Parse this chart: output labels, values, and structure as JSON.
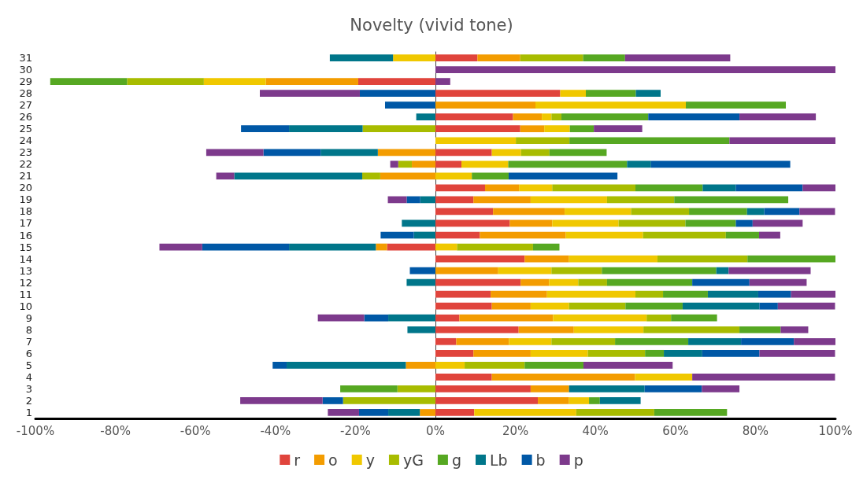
{
  "chart_data": {
    "type": "bar",
    "title": "Novelty (vivid tone)",
    "orientation": "horizontal",
    "stacked": true,
    "legend": "bottom",
    "categories": [
      "31",
      "30",
      "29",
      "28",
      "27",
      "26",
      "25",
      "24",
      "23",
      "22",
      "21",
      "20",
      "19",
      "18",
      "17",
      "16",
      "15",
      "14",
      "13",
      "12",
      "11",
      "10",
      "9",
      "8",
      "7",
      "6",
      "5",
      "4",
      "3",
      "2",
      "1"
    ],
    "xlim": [
      -100,
      100
    ],
    "xticks": [
      {
        "value": -100,
        "label": "-100%"
      },
      {
        "value": -80,
        "label": "-80%"
      },
      {
        "value": -60,
        "label": "-60%"
      },
      {
        "value": -40,
        "label": "-40%"
      },
      {
        "value": -20,
        "label": "-20%"
      },
      {
        "value": 0,
        "label": "0%"
      },
      {
        "value": 20,
        "label": "20%"
      },
      {
        "value": 40,
        "label": "40%"
      },
      {
        "value": 60,
        "label": "60%"
      },
      {
        "value": 80,
        "label": "80%"
      },
      {
        "value": 100,
        "label": "100%"
      }
    ],
    "series": [
      {
        "name": "r",
        "color": "#e0443c",
        "values": [
          10.5,
          null,
          -19.3,
          31.2,
          null,
          19.4,
          21.2,
          null,
          14.1,
          6.5,
          null,
          12.4,
          9.5,
          14.4,
          18.6,
          11.1,
          -12.1,
          22.3,
          null,
          21.3,
          13.8,
          14.1,
          6.0,
          20.8,
          5.2,
          9.5,
          null,
          14.1,
          23.8,
          25.6,
          9.7
        ]
      },
      {
        "name": "o",
        "color": "#f39c00",
        "values": [
          10.7,
          null,
          -23.1,
          null,
          25.0,
          7.2,
          6.0,
          null,
          -14.4,
          -5.9,
          -13.8,
          8.5,
          14.3,
          17.9,
          10.6,
          21.5,
          -2.8,
          11.1,
          15.7,
          7.1,
          14.1,
          9.7,
          23.4,
          13.8,
          13.2,
          14.3,
          -7.4,
          35.8,
          9.6,
          7.8,
          -3.9
        ]
      },
      {
        "name": "y",
        "color": "#f0c800",
        "values": [
          -10.6,
          null,
          -15.5,
          6.4,
          37.6,
          2.4,
          6.4,
          20.1,
          7.3,
          11.7,
          9.1,
          8.3,
          19.1,
          16.6,
          16.6,
          19.3,
          5.4,
          22.1,
          13.3,
          7.3,
          22.1,
          9.6,
          23.4,
          17.4,
          10.6,
          14.3,
          7.3,
          14.3,
          null,
          5.0,
          25.5
        ]
      },
      {
        "name": "yG",
        "color": "#a8bc00",
        "values": [
          15.7,
          null,
          -19.2,
          null,
          null,
          2.5,
          -18.2,
          13.4,
          7.1,
          -3.4,
          -4.5,
          20.8,
          16.8,
          14.5,
          16.7,
          20.7,
          19.0,
          22.5,
          12.6,
          7.2,
          6.9,
          14.1,
          6.1,
          24.0,
          15.9,
          14.3,
          15.0,
          null,
          -9.5,
          -23.1,
          19.5
        ]
      },
      {
        "name": "g",
        "color": "#56a822",
        "values": [
          10.5,
          null,
          -19.2,
          12.5,
          25.0,
          21.7,
          6.0,
          40.0,
          14.3,
          29.7,
          9.2,
          16.8,
          28.5,
          14.5,
          12.6,
          8.3,
          6.6,
          22.0,
          28.6,
          21.3,
          11.2,
          14.3,
          11.5,
          10.3,
          18.3,
          4.7,
          14.7,
          null,
          -14.3,
          2.7,
          18.2
        ]
      },
      {
        "name": "Lb",
        "color": "#00768a",
        "values": [
          -15.8,
          null,
          null,
          6.2,
          null,
          -4.8,
          -18.4,
          null,
          -14.3,
          6.0,
          -32.0,
          8.3,
          -3.8,
          4.3,
          -8.4,
          -5.4,
          -21.7,
          null,
          3.1,
          -7.2,
          12.6,
          19.2,
          -11.8,
          -7.0,
          13.2,
          9.6,
          -29.8,
          null,
          18.9,
          10.2,
          -7.9
        ]
      },
      {
        "name": "b",
        "color": "#0058a6",
        "values": [
          null,
          null,
          null,
          -18.9,
          -12.6,
          22.8,
          -12.0,
          null,
          -14.3,
          34.8,
          27.2,
          16.7,
          -3.4,
          8.8,
          4.2,
          -8.3,
          -21.7,
          null,
          -6.4,
          14.3,
          8.2,
          4.6,
          -6.0,
          null,
          13.2,
          14.3,
          -3.5,
          null,
          14.3,
          -5.1,
          -7.3
        ]
      },
      {
        "name": "p",
        "color": "#7d3a8c",
        "values": [
          26.3,
          100,
          3.7,
          -25.0,
          null,
          19.1,
          12.1,
          26.5,
          -14.3,
          -2.0,
          -4.5,
          8.3,
          -4.7,
          8.9,
          12.5,
          5.3,
          -10.7,
          null,
          20.5,
          14.3,
          11.1,
          14.3,
          -11.6,
          6.9,
          10.4,
          18.9,
          22.3,
          35.7,
          9.4,
          -20.6,
          -7.8
        ]
      }
    ]
  }
}
